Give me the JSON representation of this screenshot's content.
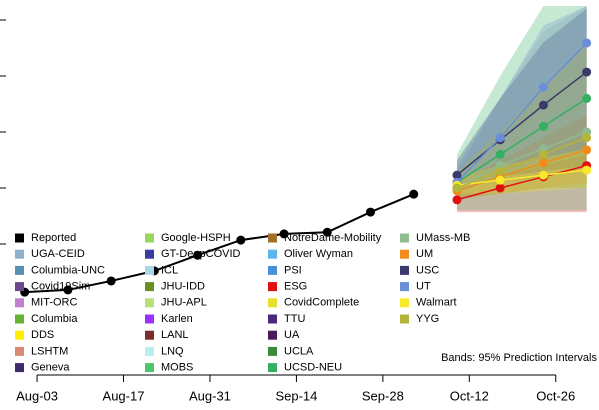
{
  "chart_data": {
    "type": "line",
    "xlim": [
      "Jul-28",
      "Nov-02"
    ],
    "xticks": [
      "Aug-03",
      "Aug-17",
      "Aug-31",
      "Sep-14",
      "Sep-28",
      "Oct-12",
      "Oct-26"
    ],
    "ylim": [
      -0.25,
      6.25
    ],
    "yticks": [
      2,
      3,
      4,
      5,
      6
    ],
    "series": [
      {
        "name": "Reported",
        "color": "#000000",
        "x": [
          "Aug-01",
          "Aug-08",
          "Aug-15",
          "Aug-22",
          "Aug-29",
          "Sep-05",
          "Sep-12",
          "Sep-19",
          "Sep-26",
          "Oct-03"
        ],
        "values": [
          1.14,
          1.18,
          1.34,
          1.52,
          1.8,
          2.07,
          2.18,
          2.21,
          2.57,
          2.89
        ]
      }
    ],
    "models": [
      {
        "name": "UGA-CEID",
        "color": "#8fb0c8"
      },
      {
        "name": "Columbia-UNC",
        "color": "#5a8fb4"
      },
      {
        "name": "Covid19Sim",
        "color": "#6a4a8a"
      },
      {
        "name": "MIT-ORC",
        "color": "#c080d0"
      },
      {
        "name": "Columbia",
        "color": "#66b032"
      },
      {
        "name": "DDS",
        "color": "#ffee00"
      },
      {
        "name": "LSHTM",
        "color": "#d98b75"
      },
      {
        "name": "Geneva",
        "color": "#3d2b6b"
      },
      {
        "name": "Google-HSPH",
        "color": "#99d65c"
      },
      {
        "name": "GT-DeepCOVID",
        "color": "#3a3aa0"
      },
      {
        "name": "ICL",
        "color": "#a8d8e8"
      },
      {
        "name": "JHU-IDD",
        "color": "#6b8e23"
      },
      {
        "name": "JHU-APL",
        "color": "#b5e07a"
      },
      {
        "name": "Karlen",
        "color": "#9b30ff"
      },
      {
        "name": "LANL",
        "color": "#7b2d2d"
      },
      {
        "name": "LNQ",
        "color": "#b8f0f0"
      },
      {
        "name": "MOBS",
        "color": "#4cc46a"
      },
      {
        "name": "NotreDame-Mobility",
        "color": "#a0702a"
      },
      {
        "name": "Oliver Wyman",
        "color": "#5bb8e8"
      },
      {
        "name": "PSI",
        "color": "#4a90d9"
      },
      {
        "name": "ESG",
        "color": "#e01010",
        "x": [
          "Oct-10",
          "Oct-17",
          "Oct-24",
          "Oct-31"
        ],
        "values": [
          2.79,
          3.0,
          3.2,
          3.4
        ],
        "lower": [
          2.57,
          2.57,
          2.57,
          2.57
        ],
        "upper": [
          3.0,
          3.2,
          3.4,
          3.6
        ]
      },
      {
        "name": "CovidComplete",
        "color": "#e8e030"
      },
      {
        "name": "TTU",
        "color": "#4a2a7a"
      },
      {
        "name": "UA",
        "color": "#4b1a5a"
      },
      {
        "name": "UCLA",
        "color": "#3a8a3a"
      },
      {
        "name": "UCSD-NEU",
        "color": "#33b060",
        "x": [
          "Oct-10",
          "Oct-17",
          "Oct-24",
          "Oct-31"
        ],
        "values": [
          3.1,
          3.6,
          4.1,
          4.6
        ],
        "lower": [
          2.6,
          2.6,
          2.6,
          2.6
        ],
        "upper": [
          3.6,
          5.0,
          6.25,
          6.25
        ]
      },
      {
        "name": "UMass-MB",
        "color": "#8fbc8f",
        "x": [
          "Oct-10",
          "Oct-17",
          "Oct-24",
          "Oct-31"
        ],
        "values": [
          3.0,
          3.4,
          3.7,
          4.0
        ],
        "lower": [
          2.8,
          2.9,
          3.0,
          3.0
        ],
        "upper": [
          3.3,
          4.6,
          5.8,
          6.25
        ]
      },
      {
        "name": "UM",
        "color": "#f08c1a",
        "x": [
          "Oct-10",
          "Oct-17",
          "Oct-24",
          "Oct-31"
        ],
        "values": [
          2.95,
          3.2,
          3.45,
          3.68
        ],
        "lower": [
          2.8,
          2.9,
          3.0,
          3.1
        ],
        "upper": [
          3.1,
          3.5,
          3.9,
          4.3
        ]
      },
      {
        "name": "USC",
        "color": "#3b3b6b",
        "x": [
          "Oct-10",
          "Oct-17",
          "Oct-24",
          "Oct-31"
        ],
        "values": [
          3.23,
          3.86,
          4.48,
          5.07
        ],
        "lower": [
          3.0,
          3.2,
          3.3,
          3.4
        ],
        "upper": [
          3.5,
          4.6,
          5.6,
          6.2
        ]
      },
      {
        "name": "UT",
        "color": "#6a8fd8",
        "x": [
          "Oct-10",
          "Oct-17",
          "Oct-24",
          "Oct-31"
        ],
        "values": [
          3.1,
          3.9,
          4.8,
          5.59
        ],
        "lower": [
          2.9,
          3.2,
          3.5,
          3.7
        ],
        "upper": [
          3.4,
          4.6,
          5.9,
          6.25
        ]
      },
      {
        "name": "Walmart",
        "color": "#f7e82a",
        "x": [
          "Oct-10",
          "Oct-17",
          "Oct-24",
          "Oct-31"
        ],
        "values": [
          3.05,
          3.14,
          3.23,
          3.32
        ],
        "lower": [
          2.9,
          2.9,
          2.95,
          3.0
        ],
        "upper": [
          3.2,
          3.4,
          3.55,
          3.7
        ]
      },
      {
        "name": "YYG",
        "color": "#b5b53a",
        "x": [
          "Oct-10",
          "Oct-17",
          "Oct-24",
          "Oct-31"
        ],
        "values": [
          3.0,
          3.3,
          3.6,
          3.9
        ],
        "lower": [
          2.8,
          2.9,
          3.0,
          3.0
        ],
        "upper": [
          3.3,
          4.0,
          4.8,
          5.6
        ]
      }
    ],
    "note": "Bands: 95% Prediction Intervals"
  }
}
